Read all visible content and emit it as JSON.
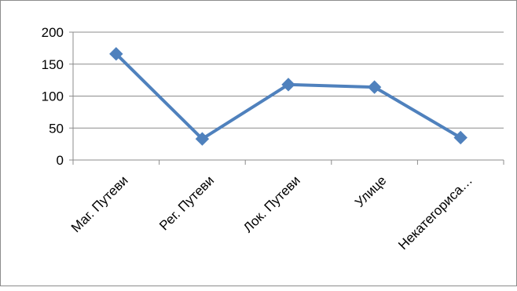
{
  "chart_data": {
    "type": "line",
    "title": "",
    "xlabel": "",
    "ylabel": "",
    "categories": [
      "Маг. Путеви",
      "Рег. Путеви",
      "Лок. Путеви",
      "Улице",
      "Некатегориса…"
    ],
    "series": [
      {
        "values": [
          166,
          33,
          118,
          114,
          35
        ],
        "color": "#4F81BD"
      }
    ],
    "ylim": [
      0,
      200
    ],
    "yticks": [
      0,
      50,
      100,
      150,
      200
    ],
    "grid": true,
    "legend": "none",
    "marker": "diamond",
    "colors": {
      "line": "#4F81BD",
      "gridline": "#8c8c8c",
      "axis": "#8c8c8c"
    }
  }
}
